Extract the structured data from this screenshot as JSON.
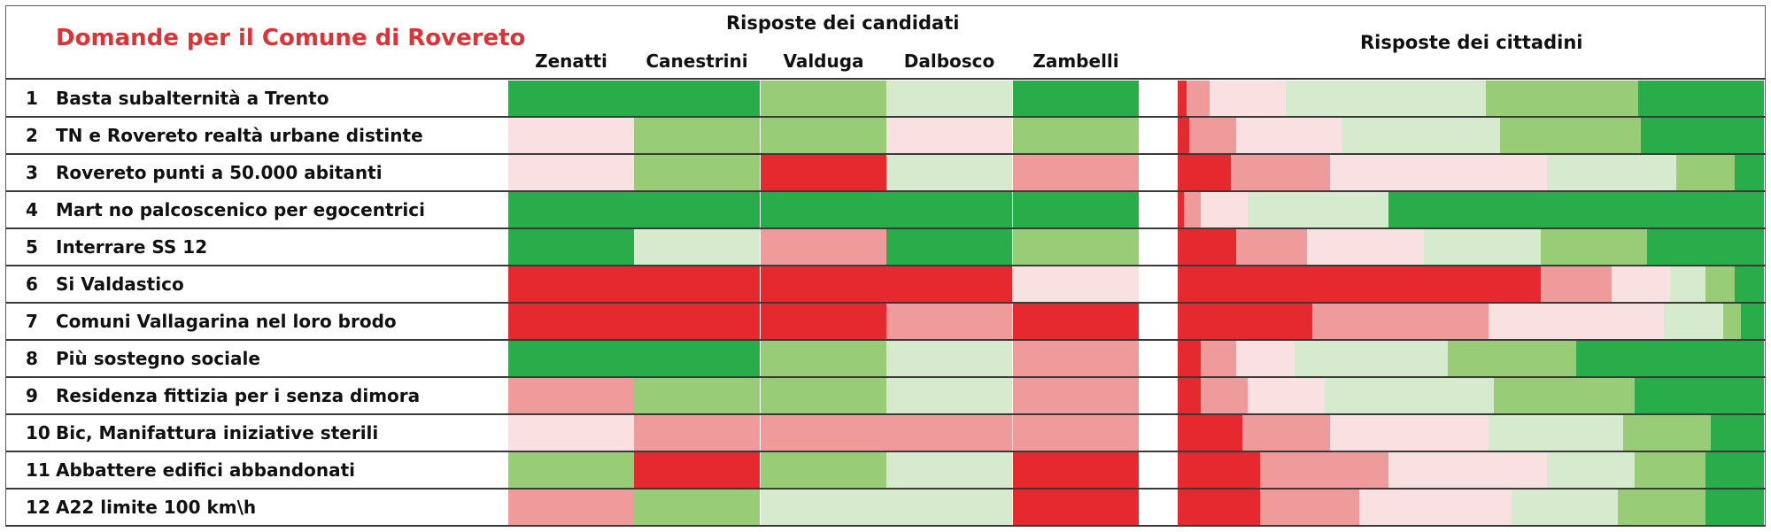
{
  "chart_data": {
    "type": "heatmap",
    "title": "Domande per il Comune di Rovereto",
    "candidates_group_title": "Risposte dei candidati",
    "citizens_group_title": "Risposte dei cittadini",
    "candidates": [
      "Zenatti",
      "Canestrini",
      "Valduga",
      "Dalbosco",
      "Zambelli"
    ],
    "scale": [
      {
        "level": 1,
        "color": "#e5292f"
      },
      {
        "level": 2,
        "color": "#ef9a9b"
      },
      {
        "level": 3,
        "color": "#f9e0e1"
      },
      {
        "level": 4,
        "color": "#d6eacd"
      },
      {
        "level": 5,
        "color": "#99cc76"
      },
      {
        "level": 6,
        "color": "#29ad4b"
      }
    ],
    "questions": [
      {
        "num": "1",
        "text": "Basta subalternità a Trento",
        "answers": [
          6,
          6,
          5,
          4,
          6
        ],
        "citizens_pct": [
          1.5,
          4,
          13,
          34,
          26,
          21.5
        ]
      },
      {
        "num": "2",
        "text": "TN e Rovereto realtà urbane distinte",
        "answers": [
          3,
          5,
          5,
          3,
          5
        ],
        "citizens_pct": [
          2,
          8,
          18,
          27,
          24,
          21
        ]
      },
      {
        "num": "3",
        "text": "Rovereto punti a 50.000 abitanti",
        "answers": [
          3,
          5,
          1,
          4,
          2
        ],
        "citizens_pct": [
          9,
          17,
          37,
          22,
          10,
          5
        ]
      },
      {
        "num": "4",
        "text": "Mart no palcoscenico per egocentrici",
        "answers": [
          6,
          6,
          6,
          6,
          6
        ],
        "citizens_pct": [
          1,
          3,
          8,
          24,
          0,
          64
        ]
      },
      {
        "num": "5",
        "text": "Interrare SS 12",
        "answers": [
          6,
          4,
          2,
          6,
          5
        ],
        "citizens_pct": [
          10,
          12,
          20,
          20,
          18,
          20
        ]
      },
      {
        "num": "6",
        "text": "Si Valdastico",
        "answers": [
          1,
          1,
          1,
          1,
          3
        ],
        "citizens_pct": [
          62,
          12,
          10,
          6,
          5,
          5
        ]
      },
      {
        "num": "7",
        "text": "Comuni Vallagarina nel loro brodo",
        "answers": [
          1,
          1,
          1,
          2,
          1
        ],
        "citizens_pct": [
          23,
          30,
          30,
          10,
          3,
          4
        ]
      },
      {
        "num": "8",
        "text": "Più sostegno sociale",
        "answers": [
          6,
          6,
          5,
          4,
          2
        ],
        "citizens_pct": [
          4,
          6,
          10,
          26,
          22,
          32
        ]
      },
      {
        "num": "9",
        "text": "Residenza fittizia per i senza dimora",
        "answers": [
          2,
          5,
          5,
          4,
          2
        ],
        "citizens_pct": [
          4,
          8,
          13,
          29,
          24,
          22
        ]
      },
      {
        "num": "10",
        "text": "Bic, Manifattura iniziative sterili",
        "answers": [
          3,
          2,
          2,
          2,
          2
        ],
        "citizens_pct": [
          11,
          15,
          27,
          23,
          15,
          9
        ]
      },
      {
        "num": "11",
        "text": "Abbattere edifici abbandonati",
        "answers": [
          5,
          1,
          5,
          4,
          1
        ],
        "citizens_pct": [
          14,
          22,
          27,
          15,
          12,
          10
        ]
      },
      {
        "num": "12",
        "text": "A22 limite 100 km\\h",
        "answers": [
          2,
          5,
          4,
          4,
          1
        ],
        "citizens_pct": [
          14,
          17,
          26,
          18,
          15,
          10
        ]
      }
    ]
  }
}
